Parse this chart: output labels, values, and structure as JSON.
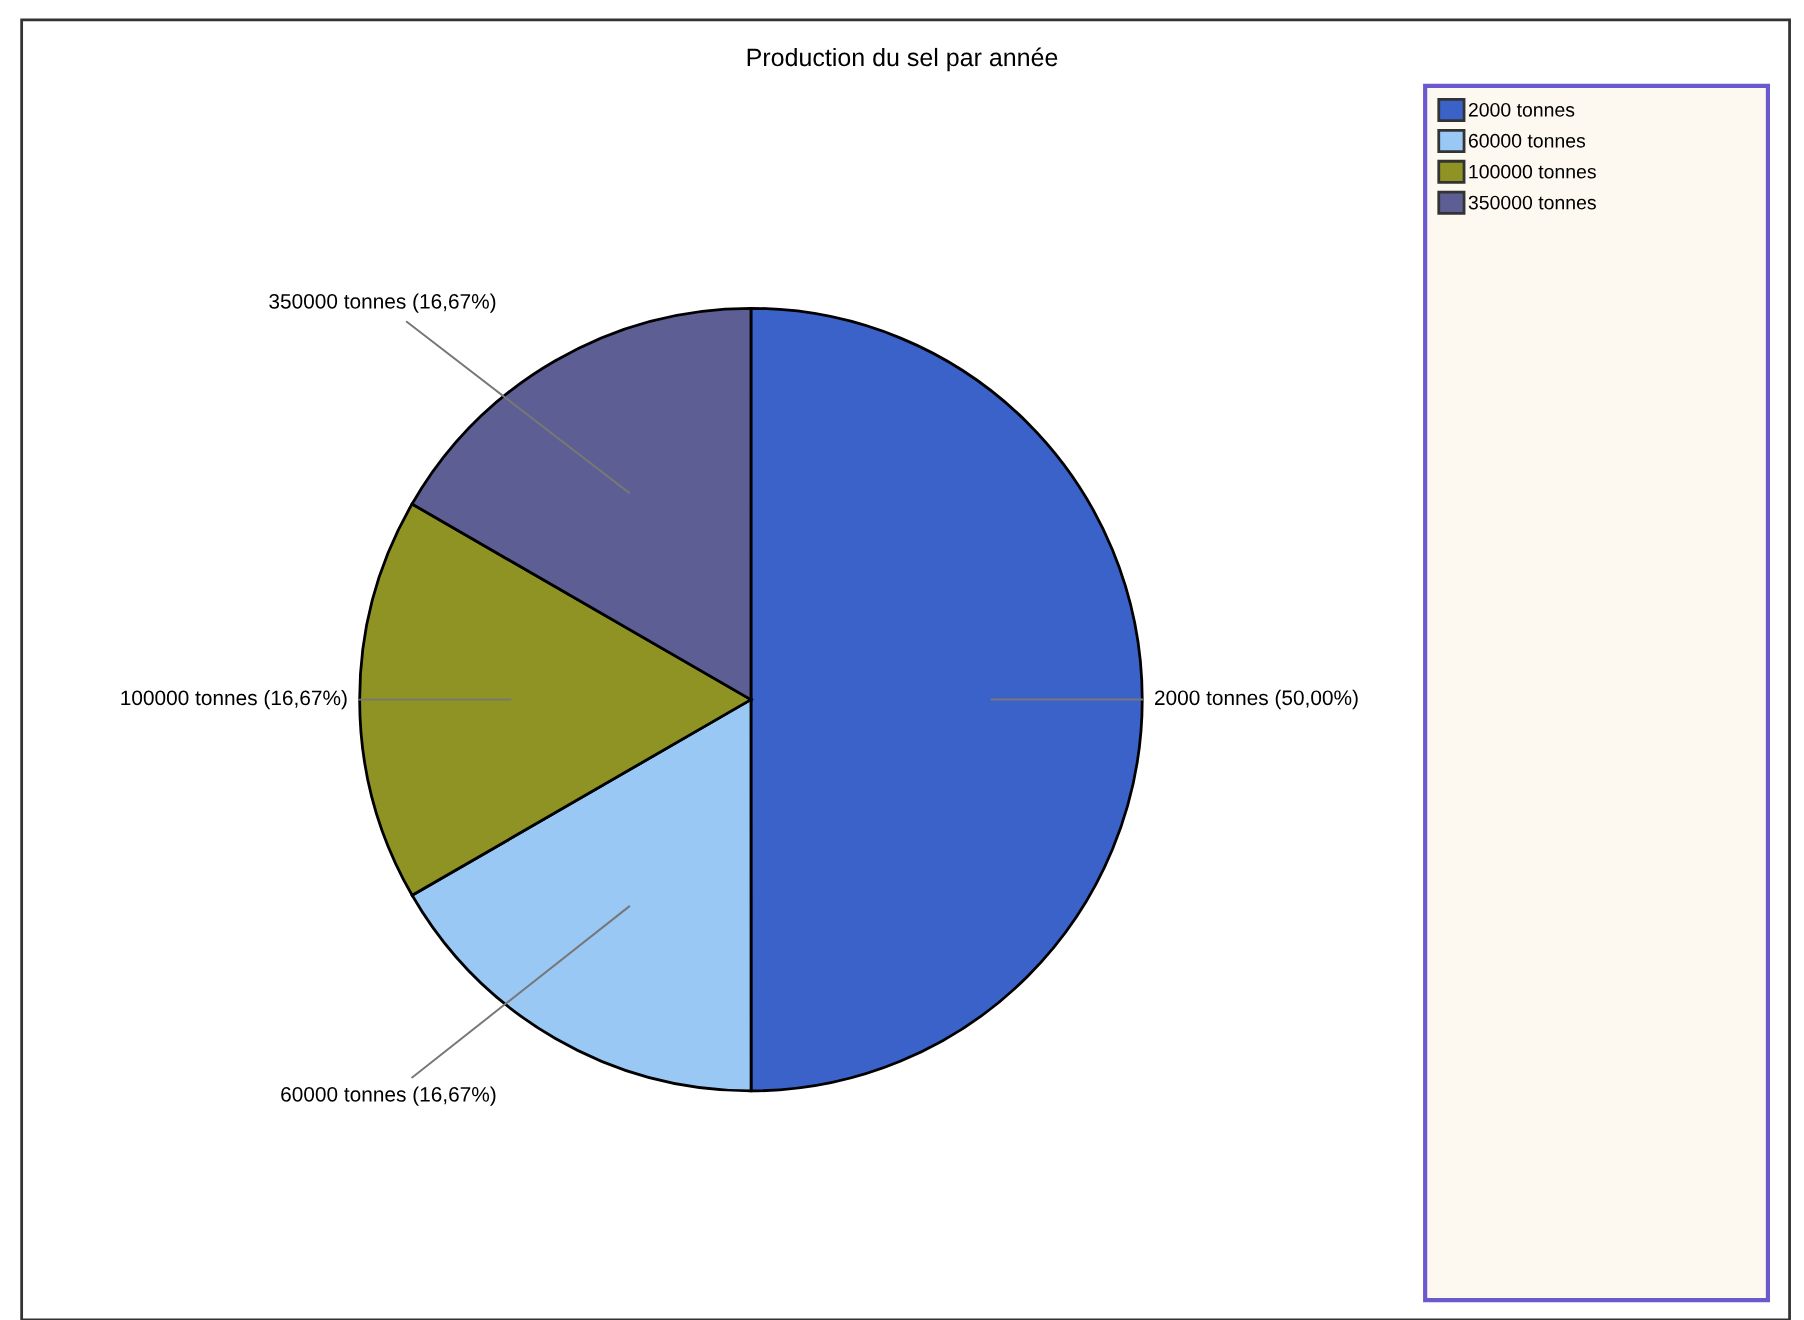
{
  "chart_data": {
    "type": "pie",
    "title": "Production du sel par année",
    "categories": [
      "2000 tonnes",
      "60000 tonnes",
      "100000 tonnes",
      "350000 tonnes"
    ],
    "values": [
      50.0,
      16.67,
      16.67,
      16.67
    ],
    "colors": [
      "#3a62c9",
      "#99c8f5",
      "#8e9324",
      "#5d5f94"
    ],
    "value_labels": [
      "2000 tonnes (50,00%)",
      "60000 tonnes (16,67%)",
      "100000 tonnes (16,67%)",
      "350000 tonnes (16,67%)"
    ],
    "legend": "right"
  }
}
